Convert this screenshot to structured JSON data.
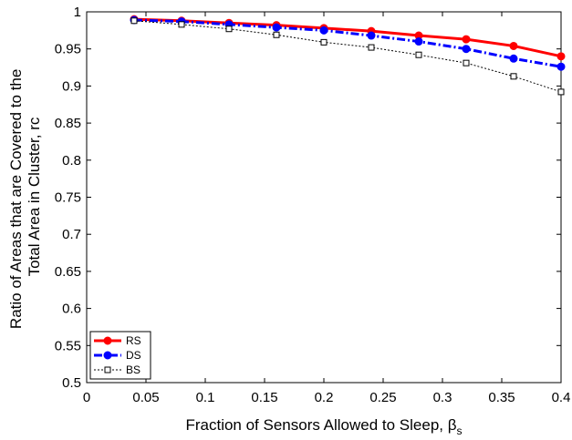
{
  "chart_data": {
    "type": "line",
    "title": "",
    "xlabel": "Fraction of Sensors Allowed to Sleep, β",
    "xlabel_subscript": "s",
    "ylabel_line1": "Ratio of Areas that are Covered to the",
    "ylabel_line2": "Total Area in Cluster, rc",
    "xlim": [
      0,
      0.4
    ],
    "ylim": [
      0.5,
      1
    ],
    "xticks": [
      0,
      0.05,
      0.1,
      0.15,
      0.2,
      0.25,
      0.3,
      0.35,
      0.4
    ],
    "xtick_labels": [
      "0",
      "0.05",
      "0.1",
      "0.15",
      "0.2",
      "0.25",
      "0.3",
      "0.35",
      "0.4"
    ],
    "yticks": [
      0.5,
      0.55,
      0.6,
      0.65,
      0.7,
      0.75,
      0.8,
      0.85,
      0.9,
      0.95,
      1
    ],
    "ytick_labels": [
      "0.5",
      "0.55",
      "0.6",
      "0.65",
      "0.7",
      "0.75",
      "0.8",
      "0.85",
      "0.9",
      "0.95",
      "1"
    ],
    "grid": false,
    "legend_position": "bottom-left",
    "x": [
      0.04,
      0.08,
      0.12,
      0.16,
      0.2,
      0.24,
      0.28,
      0.32,
      0.36,
      0.4
    ],
    "series": [
      {
        "name": "RS",
        "values": [
          0.99,
          0.988,
          0.985,
          0.982,
          0.978,
          0.974,
          0.968,
          0.963,
          0.954,
          0.94
        ],
        "color": "#ff0000",
        "line_style": "solid",
        "marker": "filled-circle"
      },
      {
        "name": "DS",
        "values": [
          0.989,
          0.987,
          0.983,
          0.979,
          0.975,
          0.968,
          0.96,
          0.95,
          0.937,
          0.926
        ],
        "color": "#0000ff",
        "line_style": "dash-dot",
        "marker": "filled-circle"
      },
      {
        "name": "BS",
        "values": [
          0.988,
          0.983,
          0.977,
          0.969,
          0.959,
          0.952,
          0.942,
          0.931,
          0.913,
          0.892
        ],
        "color": "#000000",
        "line_style": "dotted",
        "marker": "open-square"
      }
    ]
  }
}
